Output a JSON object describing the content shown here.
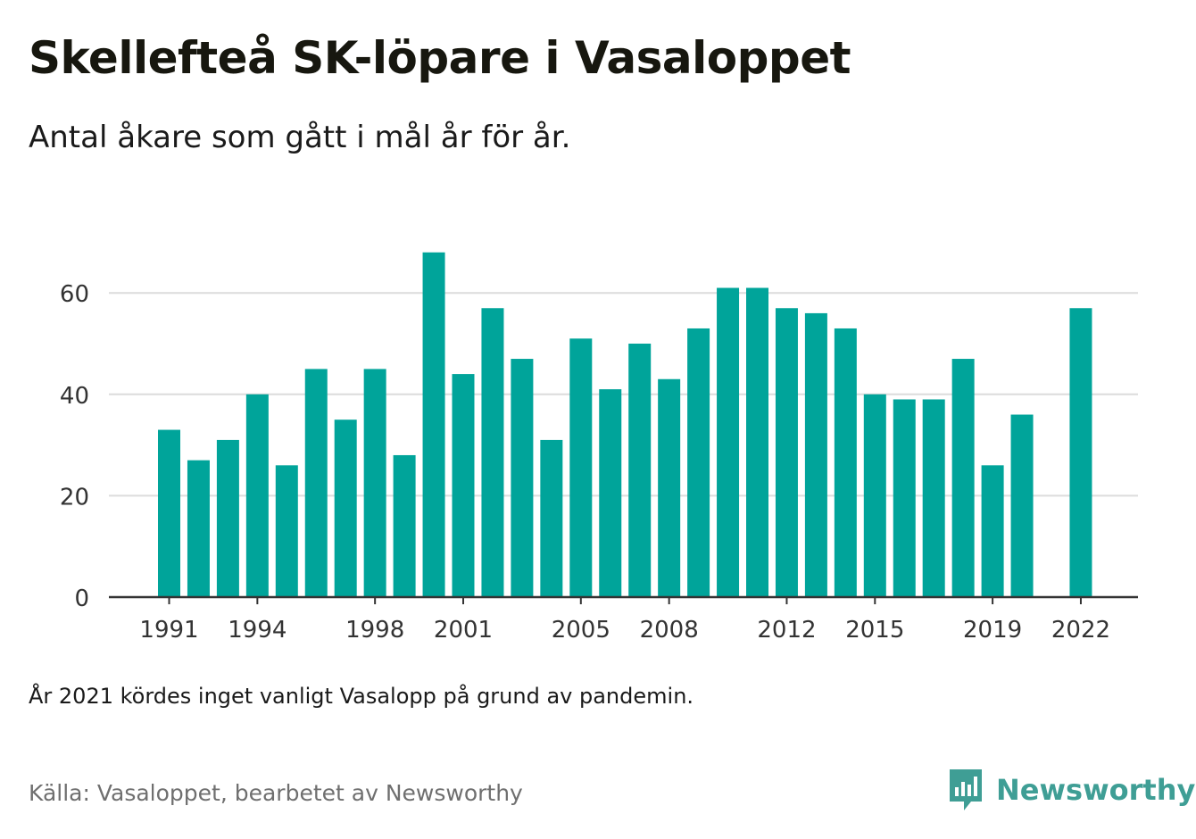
{
  "header": {
    "title": "Skellefteå SK-löpare i Vasaloppet",
    "subtitle": "Antal åkare som gått i mål år för år."
  },
  "footer": {
    "note": "År 2021 kördes inget vanligt Vasalopp på grund av pandemin.",
    "source": "Källa: Vasaloppet, bearbetet av Newsworthy",
    "brand": "Newsworthy",
    "brand_icon": "newsworthy-logo-icon"
  },
  "colors": {
    "bar": "#00a49a",
    "grid": "#dcdcdc",
    "axis": "#333333",
    "brand": "#3f9e95"
  },
  "chart_data": {
    "type": "bar",
    "title": "Skellefteå SK-löpare i Vasaloppet",
    "subtitle": "Antal åkare som gått i mål år för år.",
    "categories": [
      1991,
      1992,
      1993,
      1994,
      1995,
      1996,
      1997,
      1998,
      1999,
      2000,
      2001,
      2002,
      2003,
      2004,
      2005,
      2006,
      2007,
      2008,
      2009,
      2010,
      2011,
      2012,
      2013,
      2014,
      2015,
      2016,
      2017,
      2018,
      2019,
      2020,
      2021,
      2022
    ],
    "values": [
      33,
      27,
      31,
      40,
      26,
      45,
      35,
      45,
      28,
      68,
      44,
      57,
      47,
      31,
      51,
      41,
      50,
      43,
      53,
      61,
      61,
      57,
      56,
      53,
      40,
      39,
      39,
      47,
      26,
      36,
      null,
      57
    ],
    "x_tick_labels": [
      "1991",
      "1994",
      "1998",
      "2001",
      "2005",
      "2008",
      "2012",
      "2015",
      "2019",
      "2022"
    ],
    "y_ticks": [
      0,
      20,
      40,
      60
    ],
    "ylim": [
      0,
      72
    ],
    "xlabel": "",
    "ylabel": "",
    "grid": true,
    "legend": "none"
  }
}
